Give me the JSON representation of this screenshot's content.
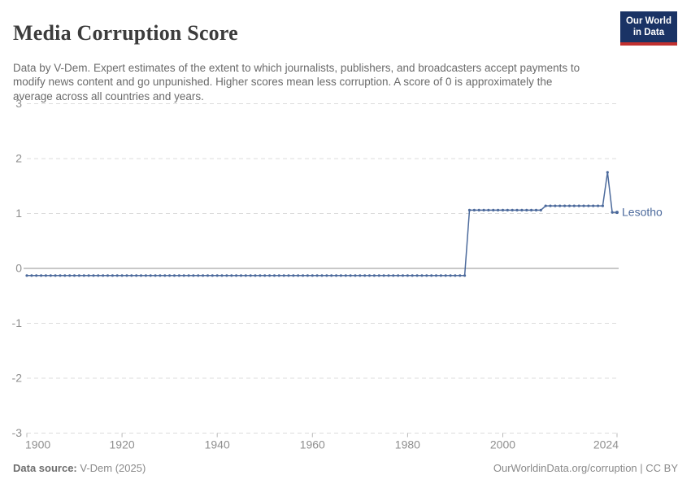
{
  "header": {
    "title": "Media Corruption Score",
    "subtitle": "Data by V-Dem. Expert estimates of the extent to which journalists, publishers, and broadcasters accept payments to modify news content and go unpunished. Higher scores mean less corruption. A score of 0 is approximately the average across all countries and years."
  },
  "logo": {
    "line1": "Our World",
    "line2": "in Data"
  },
  "footer": {
    "source_label": "Data source:",
    "source_value": "V-Dem (2025)",
    "right_text": "OurWorldinData.org/corruption | CC BY"
  },
  "colors": {
    "line": "#4C6A9C",
    "entity_label": "#4C6A9C",
    "grid": "#DCDCDC",
    "zero_line": "#A6A6A6",
    "tick_mark": "#B8B8B8",
    "axis_text": "#8F8F8F",
    "title_text": "#3C3C3C",
    "subtitle_text": "#6B6B6B",
    "logo_bg": "#1A3365",
    "logo_bar": "#C1302F"
  },
  "chart_data": {
    "type": "line",
    "title": "Media Corruption Score",
    "xlabel": "",
    "ylabel": "",
    "xlim": [
      1900,
      2024
    ],
    "ylim": [
      -3,
      3
    ],
    "x_ticks": [
      1900,
      1920,
      1940,
      1960,
      1980,
      2000,
      2024
    ],
    "y_ticks": [
      3,
      2,
      1,
      0,
      -1,
      -2,
      -3
    ],
    "grid": "horizontal-dashed",
    "zero_line": true,
    "markers": "dot-every-year",
    "legend_position": "end-of-line",
    "series": [
      {
        "name": "Lesotho",
        "points_by_period": [
          {
            "from": 1900,
            "to": 1992,
            "value": -0.13
          },
          {
            "from": 1993,
            "to": 2008,
            "value": 1.06
          },
          {
            "from": 2009,
            "to": 2021,
            "value": 1.14
          },
          {
            "from": 2022,
            "to": 2022,
            "value": 1.75
          },
          {
            "from": 2023,
            "to": 2024,
            "value": 1.02
          }
        ]
      }
    ]
  }
}
